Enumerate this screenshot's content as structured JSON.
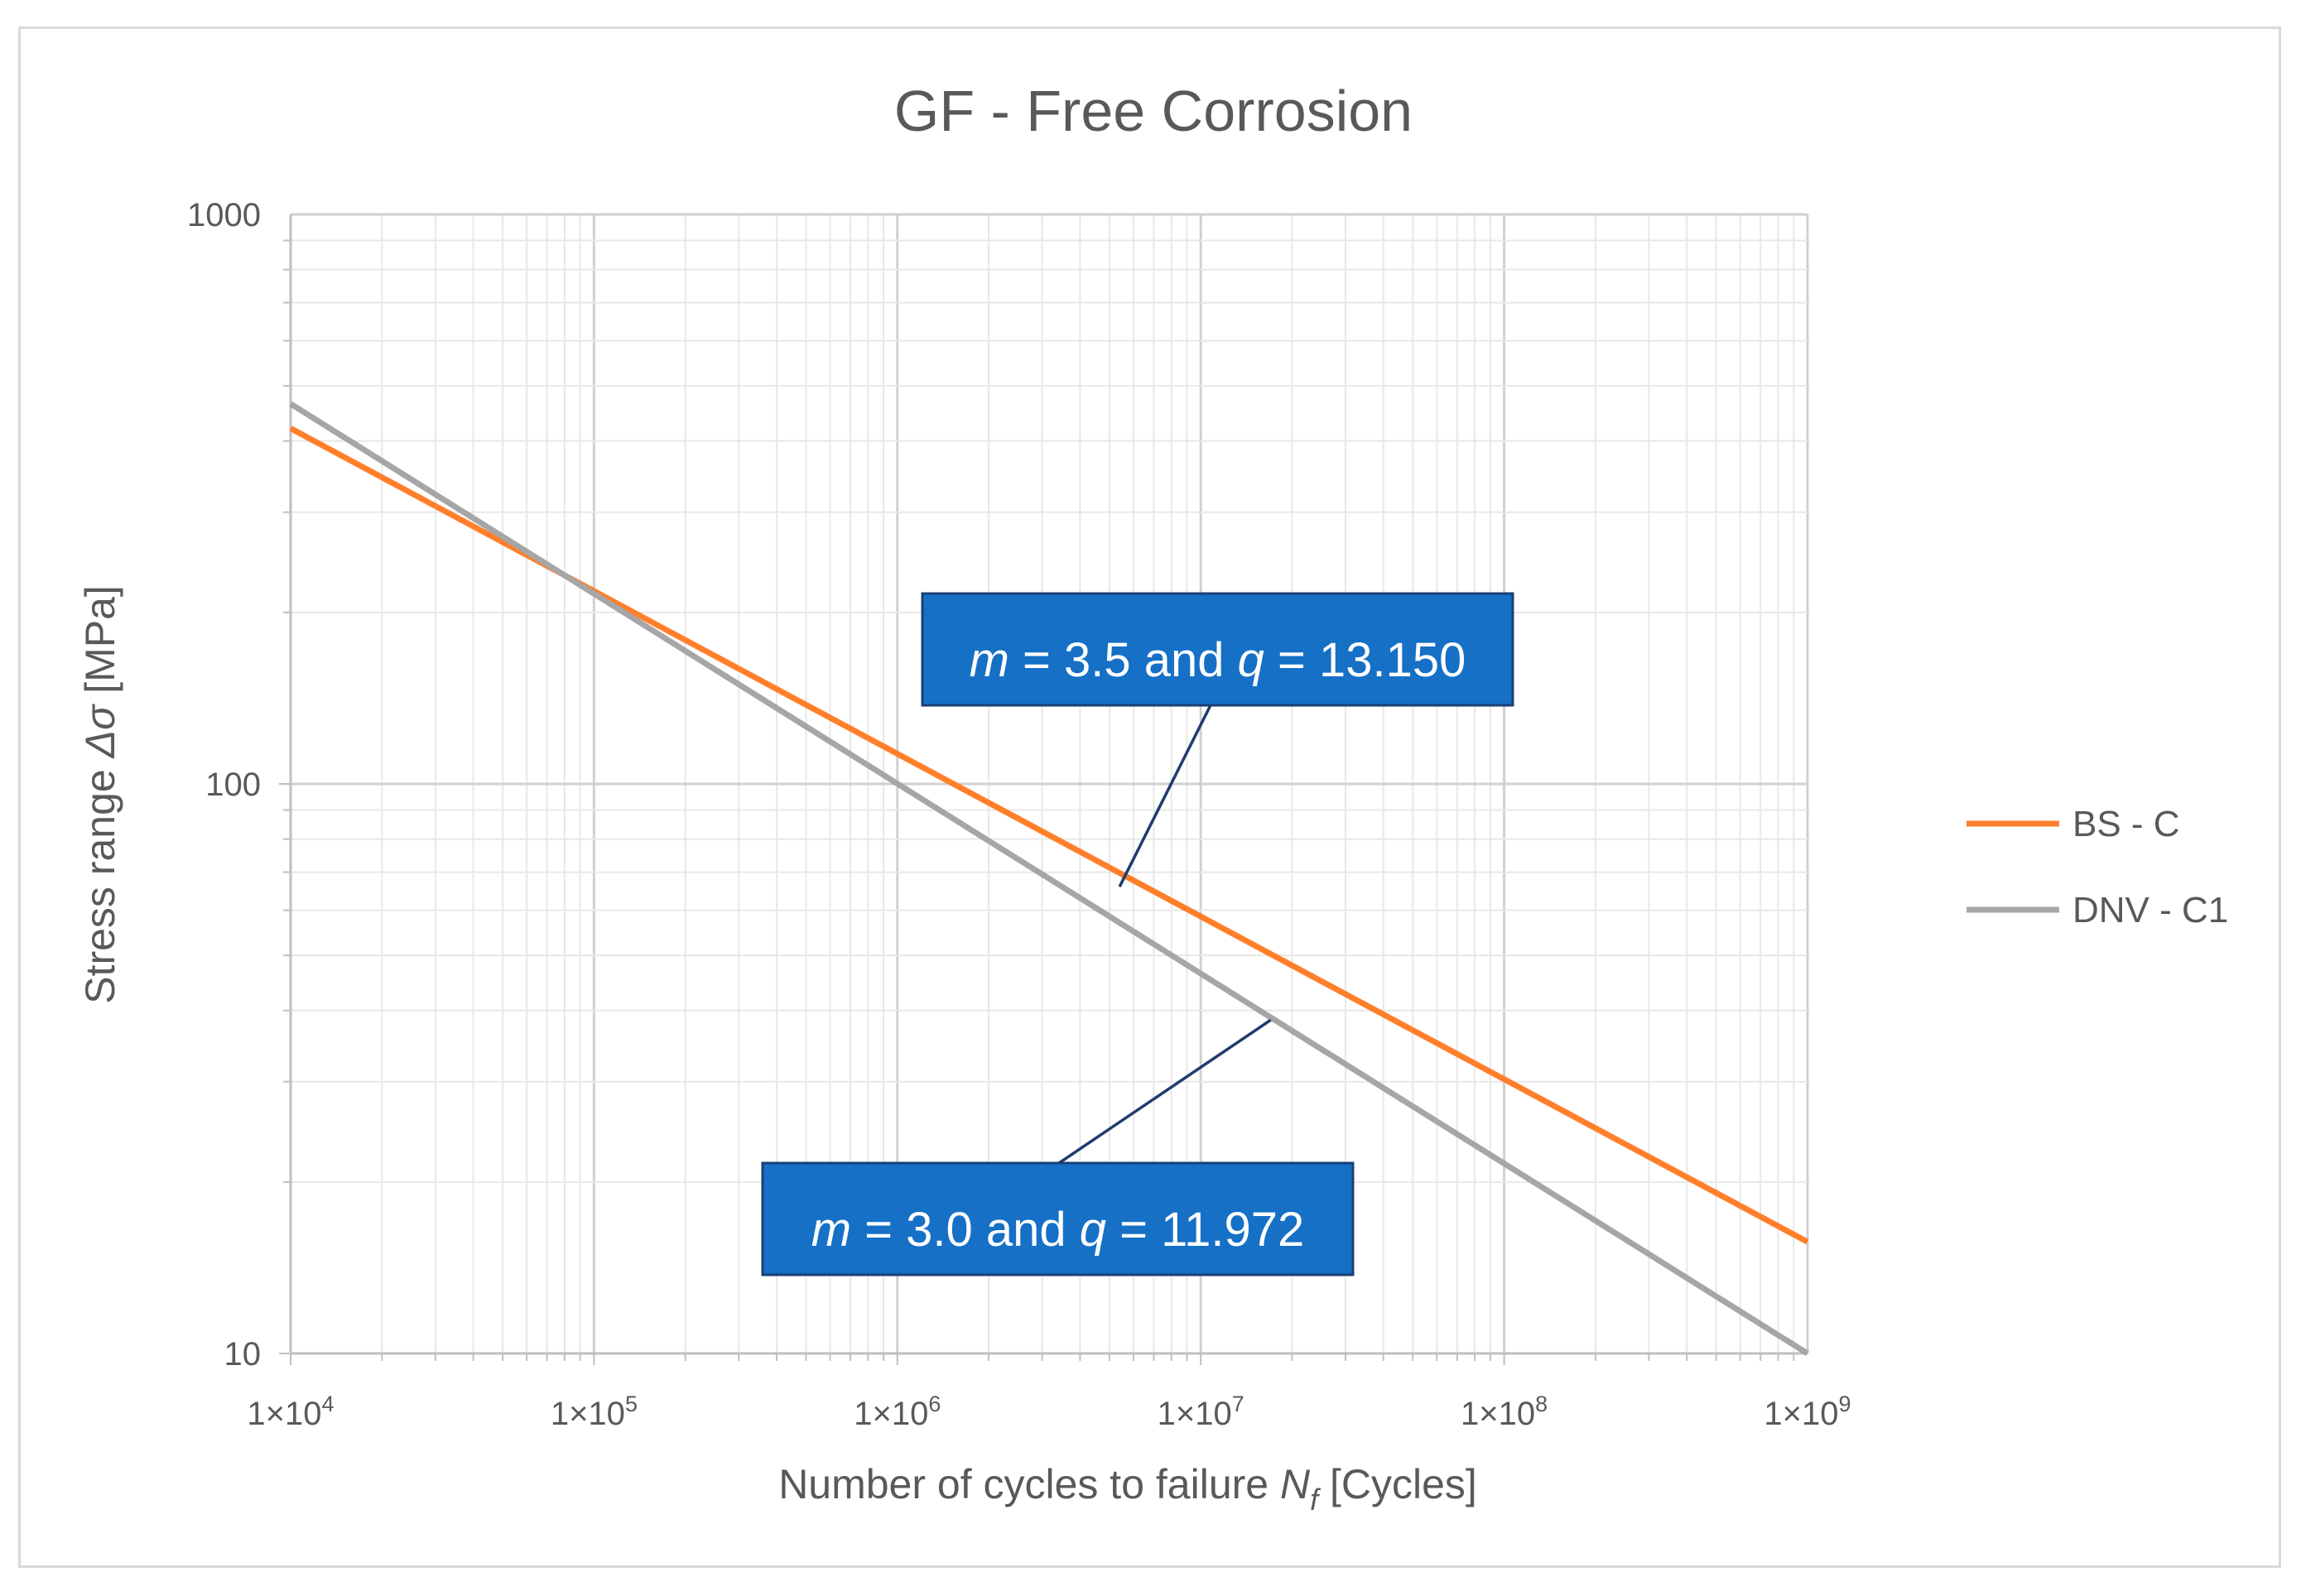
{
  "chart_data": {
    "type": "line",
    "title": "GF - Free Corrosion",
    "xlabel": {
      "prefix": "Number of cycles to failure ",
      "symbol": "N",
      "subscript": "f",
      "suffix": " [Cycles]"
    },
    "ylabel": {
      "prefix": "Stress range ",
      "symbol": "Δσ",
      "suffix": " [MPa]"
    },
    "x_scale": "log",
    "y_scale": "log",
    "xlim": [
      10000,
      1000000000
    ],
    "ylim": [
      10,
      1000
    ],
    "x_ticks": [
      {
        "value": 10000,
        "base": "1×10",
        "exp": "4"
      },
      {
        "value": 100000,
        "base": "1×10",
        "exp": "5"
      },
      {
        "value": 1000000,
        "base": "1×10",
        "exp": "6"
      },
      {
        "value": 10000000,
        "base": "1×10",
        "exp": "7"
      },
      {
        "value": 100000000,
        "base": "1×10",
        "exp": "8"
      },
      {
        "value": 1000000000,
        "base": "1×10",
        "exp": "9"
      }
    ],
    "y_ticks": [
      {
        "value": 10,
        "label": "10"
      },
      {
        "value": 100,
        "label": "100"
      },
      {
        "value": 1000,
        "label": "1000"
      }
    ],
    "grid": true,
    "legend_position": "right",
    "series": [
      {
        "name": "BS - C",
        "color": "#ff7f2a",
        "x": [
          10000,
          1000000000
        ],
        "y": [
          421,
          15.7
        ]
      },
      {
        "name": "DNV - C1",
        "color": "#a6a6a6",
        "x": [
          10000,
          1000000000
        ],
        "y": [
          465,
          10
        ]
      }
    ],
    "annotations": [
      {
        "series": "BS - C",
        "m": "3.5",
        "q": "13.150",
        "point": [
          5400000,
          66
        ]
      },
      {
        "series": "DNV - C1",
        "m": "3.0",
        "q": "11.972",
        "point": [
          17000000,
          38.5
        ]
      }
    ],
    "annotation_words": {
      "m": "m",
      "eq": " = ",
      "and": " and ",
      "q": "q"
    },
    "annotation_color": "#1570c6",
    "leader_color": "#1f3c6e"
  }
}
